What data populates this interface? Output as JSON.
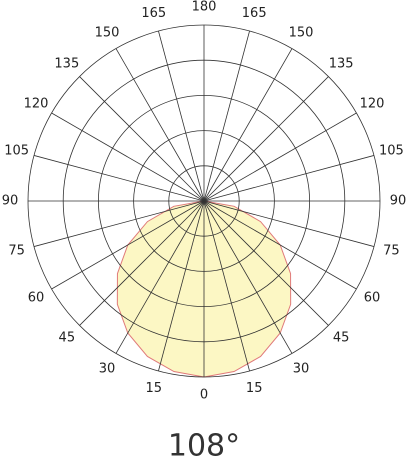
{
  "chart_data": {
    "type": "polar",
    "caption": "108°",
    "thetaticks": [
      0,
      15,
      30,
      45,
      60,
      75,
      90,
      105,
      120,
      135,
      150,
      165,
      180
    ],
    "rlim": [
      0,
      5
    ],
    "rticks": [
      1,
      2,
      3,
      4,
      5
    ],
    "series": [
      {
        "color": "#fcf7c4",
        "edge_color": "#e07a7a",
        "theta": [
          -90,
          -80,
          -70,
          -60,
          -50,
          -40,
          -30,
          -20,
          -10,
          0,
          10,
          20,
          30,
          40,
          50,
          60,
          70,
          80,
          90
        ],
        "values": [
          0,
          0.87,
          1.71,
          2.5,
          3.21,
          3.83,
          4.33,
          4.7,
          4.92,
          5,
          4.92,
          4.7,
          4.33,
          3.83,
          3.21,
          2.5,
          1.71,
          0.87,
          0
        ]
      }
    ]
  }
}
